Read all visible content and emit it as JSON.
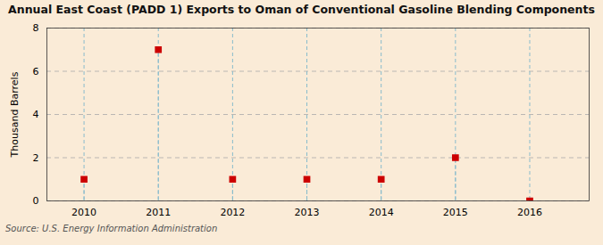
{
  "chart_data": {
    "type": "stem",
    "title": "Annual East Coast (PADD 1) Exports to Oman of Conventional Gasoline Blending Components",
    "ylabel": "Thousand Barrels",
    "source": "Source: U.S. Energy Information Administration",
    "x": [
      2010,
      2011,
      2012,
      2013,
      2014,
      2015,
      2016
    ],
    "values": [
      1,
      7,
      1,
      1,
      1,
      2,
      0
    ],
    "color": "#cc0000",
    "marker": "square",
    "xlim": [
      2009.5,
      2016.8
    ],
    "xticks": [
      2010,
      2011,
      2012,
      2013,
      2014,
      2015,
      2016
    ],
    "ylim": [
      0,
      8
    ],
    "yticks": [
      0,
      2,
      4,
      6,
      8
    ],
    "grid": true
  }
}
